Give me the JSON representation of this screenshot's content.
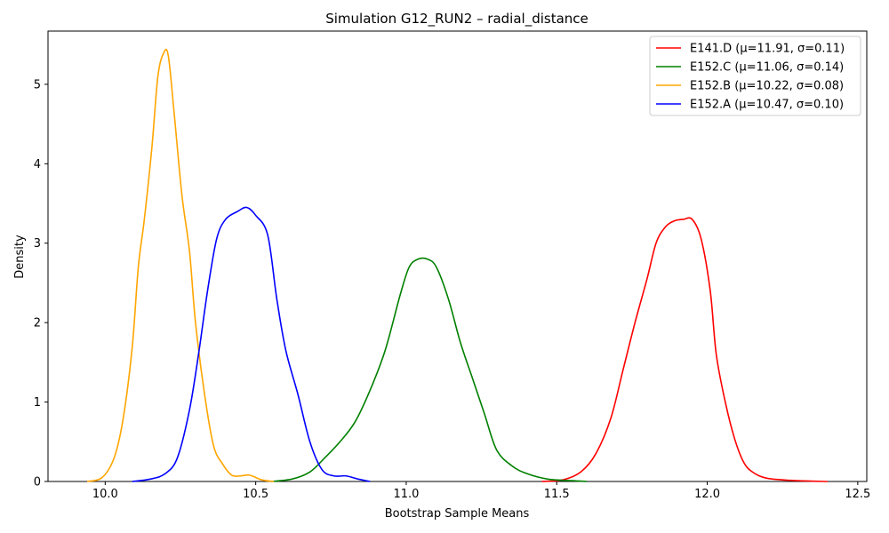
{
  "chart_data": {
    "type": "line",
    "title": "Simulation G12_RUN2 – radial_distance",
    "xlabel": "Bootstrap Sample Means",
    "ylabel": "Density",
    "xlim": [
      9.81,
      12.53
    ],
    "ylim": [
      0,
      5.67
    ],
    "xticks": [
      10.0,
      10.5,
      11.0,
      11.5,
      12.0,
      12.5
    ],
    "xtick_labels": [
      "10.0",
      "10.5",
      "11.0",
      "11.5",
      "12.0",
      "12.5"
    ],
    "yticks": [
      0,
      1,
      2,
      3,
      4,
      5
    ],
    "ytick_labels": [
      "0",
      "1",
      "2",
      "3",
      "4",
      "5"
    ],
    "grid": false,
    "legend_position": "top-right",
    "series": [
      {
        "name": "E141.D (μ=11.91, σ=0.11)",
        "color": "#ff0000",
        "x": [
          11.45,
          11.52,
          11.58,
          11.63,
          11.68,
          11.72,
          11.76,
          11.8,
          11.83,
          11.86,
          11.89,
          11.92,
          11.95,
          11.98,
          12.01,
          12.03,
          12.06,
          12.09,
          12.12,
          12.15,
          12.2,
          12.3,
          12.4
        ],
        "y": [
          0.0,
          0.02,
          0.12,
          0.35,
          0.8,
          1.4,
          2.0,
          2.55,
          3.0,
          3.2,
          3.28,
          3.3,
          3.3,
          3.05,
          2.4,
          1.6,
          1.0,
          0.55,
          0.25,
          0.12,
          0.04,
          0.01,
          0.0
        ]
      },
      {
        "name": "E152.C (μ=11.06, σ=0.14)",
        "color": "#008000",
        "x": [
          10.55,
          10.62,
          10.68,
          10.73,
          10.78,
          10.83,
          10.88,
          10.93,
          10.98,
          11.01,
          11.04,
          11.07,
          11.1,
          11.14,
          11.18,
          11.22,
          11.26,
          11.3,
          11.35,
          11.4,
          11.47,
          11.55,
          11.6
        ],
        "y": [
          0.0,
          0.03,
          0.12,
          0.3,
          0.5,
          0.75,
          1.15,
          1.65,
          2.35,
          2.7,
          2.8,
          2.8,
          2.7,
          2.3,
          1.75,
          1.3,
          0.85,
          0.4,
          0.2,
          0.1,
          0.03,
          0.01,
          0.0
        ]
      },
      {
        "name": "E152.B (μ=10.22, σ=0.08)",
        "color": "#ffa500",
        "x": [
          9.94,
          9.99,
          10.03,
          10.06,
          10.09,
          10.11,
          10.13,
          10.155,
          10.175,
          10.195,
          10.21,
          10.23,
          10.255,
          10.28,
          10.3,
          10.33,
          10.36,
          10.39,
          10.42,
          10.45,
          10.48,
          10.52,
          10.56
        ],
        "y": [
          0.0,
          0.05,
          0.3,
          0.8,
          1.7,
          2.7,
          3.3,
          4.2,
          5.1,
          5.4,
          5.35,
          4.6,
          3.6,
          2.9,
          2.0,
          1.1,
          0.45,
          0.22,
          0.08,
          0.07,
          0.08,
          0.02,
          0.0
        ]
      },
      {
        "name": "E152.A (μ=10.47, σ=0.10)",
        "color": "#0000ff",
        "x": [
          10.09,
          10.15,
          10.2,
          10.24,
          10.28,
          10.31,
          10.34,
          10.37,
          10.4,
          10.44,
          10.47,
          10.5,
          10.54,
          10.57,
          10.6,
          10.64,
          10.68,
          10.72,
          10.76,
          10.8,
          10.84,
          10.88
        ],
        "y": [
          0.0,
          0.03,
          0.1,
          0.3,
          0.9,
          1.6,
          2.4,
          3.05,
          3.3,
          3.4,
          3.45,
          3.35,
          3.1,
          2.3,
          1.65,
          1.1,
          0.5,
          0.15,
          0.07,
          0.07,
          0.03,
          0.0
        ]
      }
    ]
  }
}
